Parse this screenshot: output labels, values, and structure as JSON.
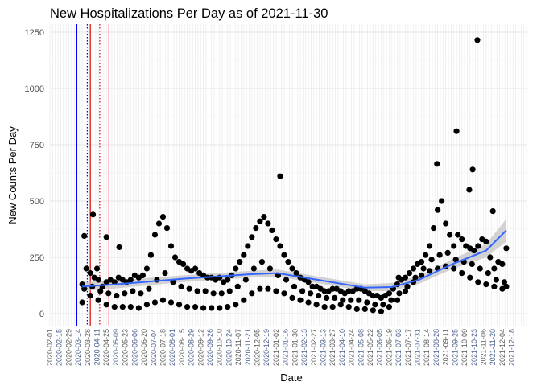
{
  "chart_data": {
    "type": "scatter",
    "title": "New Hospitalizations Per Day as of 2021-11-30",
    "xlabel": "Date",
    "ylabel": "New Counts Per Day",
    "ylim": [
      -50,
      1280
    ],
    "xlim_days": [
      -48,
      660
    ],
    "y_ticks": [
      0,
      250,
      500,
      750,
      1000,
      1250
    ],
    "y_tick_labels": [
      "0",
      "250",
      "500",
      "750",
      "1000",
      "1250"
    ],
    "x_tick_days_start": -48,
    "x_tick_days_step": 14,
    "x_tick_labels": [
      "2020-02-01",
      "2020-02-15",
      "2020-02-29",
      "2020-03-14",
      "2020-03-28",
      "2020-04-11",
      "2020-04-25",
      "2020-05-09",
      "2020-05-23",
      "2020-06-06",
      "2020-06-20",
      "2020-07-04",
      "2020-07-18",
      "2020-08-01",
      "2020-08-15",
      "2020-08-29",
      "2020-09-12",
      "2020-09-26",
      "2020-10-10",
      "2020-10-24",
      "2020-11-07",
      "2020-11-21",
      "2020-12-05",
      "2020-12-19",
      "2021-01-02",
      "2021-01-16",
      "2021-01-30",
      "2021-02-13",
      "2021-02-27",
      "2021-03-13",
      "2021-03-27",
      "2021-04-10",
      "2021-04-24",
      "2021-05-08",
      "2021-05-22",
      "2021-06-05",
      "2021-06-19",
      "2021-07-03",
      "2021-07-17",
      "2021-07-31",
      "2021-08-14",
      "2021-08-28",
      "2021-09-11",
      "2021-09-25",
      "2021-10-09",
      "2021-10-23",
      "2021-11-06",
      "2021-11-20",
      "2021-12-04",
      "2021-12-18"
    ],
    "grid": true,
    "point_color": "#000000",
    "points_high": [
      [
        0,
        130
      ],
      [
        6,
        200
      ],
      [
        12,
        180
      ],
      [
        18,
        160
      ],
      [
        24,
        150
      ],
      [
        30,
        120
      ],
      [
        36,
        140
      ],
      [
        42,
        150
      ],
      [
        48,
        140
      ],
      [
        54,
        160
      ],
      [
        60,
        150
      ],
      [
        66,
        140
      ],
      [
        72,
        150
      ],
      [
        78,
        170
      ],
      [
        84,
        160
      ],
      [
        90,
        170
      ],
      [
        96,
        200
      ],
      [
        102,
        260
      ],
      [
        108,
        350
      ],
      [
        114,
        400
      ],
      [
        120,
        430
      ],
      [
        126,
        380
      ],
      [
        132,
        300
      ],
      [
        138,
        250
      ],
      [
        144,
        230
      ],
      [
        150,
        220
      ],
      [
        156,
        200
      ],
      [
        162,
        190
      ],
      [
        168,
        200
      ],
      [
        174,
        180
      ],
      [
        180,
        170
      ],
      [
        186,
        160
      ],
      [
        192,
        160
      ],
      [
        198,
        150
      ],
      [
        204,
        160
      ],
      [
        210,
        140
      ],
      [
        216,
        150
      ],
      [
        222,
        170
      ],
      [
        228,
        200
      ],
      [
        234,
        230
      ],
      [
        240,
        260
      ],
      [
        246,
        300
      ],
      [
        252,
        340
      ],
      [
        258,
        380
      ],
      [
        264,
        410
      ],
      [
        270,
        430
      ],
      [
        276,
        400
      ],
      [
        282,
        370
      ],
      [
        288,
        330
      ],
      [
        294,
        300
      ],
      [
        300,
        260
      ],
      [
        306,
        230
      ],
      [
        312,
        200
      ],
      [
        318,
        180
      ],
      [
        324,
        160
      ],
      [
        330,
        150
      ],
      [
        336,
        140
      ],
      [
        342,
        120
      ],
      [
        348,
        120
      ],
      [
        354,
        110
      ],
      [
        360,
        100
      ],
      [
        366,
        100
      ],
      [
        372,
        110
      ],
      [
        378,
        110
      ],
      [
        384,
        100
      ],
      [
        390,
        90
      ],
      [
        396,
        100
      ],
      [
        402,
        100
      ],
      [
        408,
        110
      ],
      [
        414,
        110
      ],
      [
        420,
        100
      ],
      [
        426,
        90
      ],
      [
        432,
        80
      ],
      [
        438,
        80
      ],
      [
        444,
        70
      ],
      [
        450,
        80
      ],
      [
        456,
        90
      ],
      [
        462,
        110
      ],
      [
        468,
        130
      ],
      [
        474,
        150
      ],
      [
        480,
        160
      ],
      [
        486,
        180
      ],
      [
        492,
        200
      ],
      [
        498,
        220
      ],
      [
        504,
        230
      ],
      [
        510,
        260
      ],
      [
        516,
        300
      ],
      [
        522,
        380
      ],
      [
        528,
        460
      ],
      [
        534,
        500
      ],
      [
        540,
        400
      ],
      [
        546,
        350
      ],
      [
        552,
        300
      ],
      [
        558,
        350
      ],
      [
        564,
        330
      ],
      [
        570,
        300
      ],
      [
        576,
        290
      ],
      [
        582,
        280
      ],
      [
        588,
        300
      ],
      [
        594,
        330
      ],
      [
        600,
        320
      ],
      [
        606,
        250
      ],
      [
        612,
        200
      ],
      [
        618,
        230
      ],
      [
        624,
        220
      ],
      [
        630,
        290
      ]
    ],
    "points_mid": [
      [
        3,
        110
      ],
      [
        15,
        120
      ],
      [
        27,
        100
      ],
      [
        39,
        90
      ],
      [
        51,
        80
      ],
      [
        63,
        90
      ],
      [
        75,
        100
      ],
      [
        87,
        90
      ],
      [
        99,
        110
      ],
      [
        111,
        150
      ],
      [
        123,
        180
      ],
      [
        135,
        140
      ],
      [
        147,
        120
      ],
      [
        159,
        110
      ],
      [
        171,
        100
      ],
      [
        183,
        100
      ],
      [
        195,
        90
      ],
      [
        207,
        90
      ],
      [
        219,
        100
      ],
      [
        231,
        120
      ],
      [
        243,
        150
      ],
      [
        255,
        200
      ],
      [
        267,
        230
      ],
      [
        279,
        200
      ],
      [
        291,
        170
      ],
      [
        303,
        150
      ],
      [
        315,
        120
      ],
      [
        327,
        100
      ],
      [
        339,
        90
      ],
      [
        351,
        80
      ],
      [
        363,
        70
      ],
      [
        375,
        70
      ],
      [
        387,
        60
      ],
      [
        399,
        60
      ],
      [
        411,
        60
      ],
      [
        423,
        50
      ],
      [
        435,
        40
      ],
      [
        447,
        40
      ],
      [
        459,
        60
      ],
      [
        471,
        90
      ],
      [
        483,
        120
      ],
      [
        495,
        160
      ],
      [
        507,
        200
      ],
      [
        519,
        240
      ],
      [
        531,
        260
      ],
      [
        543,
        270
      ],
      [
        555,
        240
      ],
      [
        567,
        230
      ],
      [
        579,
        220
      ],
      [
        591,
        200
      ],
      [
        603,
        180
      ],
      [
        615,
        150
      ],
      [
        627,
        140
      ]
    ],
    "points_low": [
      [
        0,
        50
      ],
      [
        12,
        80
      ],
      [
        24,
        60
      ],
      [
        36,
        40
      ],
      [
        48,
        30
      ],
      [
        60,
        30
      ],
      [
        72,
        30
      ],
      [
        84,
        25
      ],
      [
        96,
        40
      ],
      [
        108,
        50
      ],
      [
        120,
        60
      ],
      [
        132,
        50
      ],
      [
        144,
        40
      ],
      [
        156,
        30
      ],
      [
        168,
        30
      ],
      [
        180,
        25
      ],
      [
        192,
        25
      ],
      [
        204,
        25
      ],
      [
        216,
        30
      ],
      [
        228,
        40
      ],
      [
        240,
        60
      ],
      [
        252,
        90
      ],
      [
        264,
        110
      ],
      [
        276,
        110
      ],
      [
        288,
        100
      ],
      [
        300,
        90
      ],
      [
        312,
        70
      ],
      [
        324,
        60
      ],
      [
        336,
        50
      ],
      [
        348,
        40
      ],
      [
        360,
        30
      ],
      [
        372,
        30
      ],
      [
        384,
        40
      ],
      [
        396,
        30
      ],
      [
        408,
        20
      ],
      [
        420,
        20
      ],
      [
        432,
        15
      ],
      [
        444,
        10
      ],
      [
        456,
        30
      ],
      [
        468,
        60
      ],
      [
        480,
        100
      ],
      [
        492,
        140
      ],
      [
        504,
        170
      ],
      [
        516,
        190
      ],
      [
        528,
        200
      ],
      [
        540,
        210
      ],
      [
        552,
        200
      ],
      [
        564,
        180
      ],
      [
        576,
        160
      ],
      [
        588,
        140
      ],
      [
        600,
        130
      ],
      [
        612,
        120
      ],
      [
        624,
        110
      ],
      [
        630,
        120
      ]
    ],
    "points_outliers": [
      [
        3,
        345
      ],
      [
        16,
        440
      ],
      [
        22,
        200
      ],
      [
        36,
        340
      ],
      [
        55,
        295
      ],
      [
        294,
        610
      ],
      [
        527,
        665
      ],
      [
        556,
        810
      ],
      [
        575,
        550
      ],
      [
        580,
        640
      ],
      [
        587,
        1215
      ],
      [
        610,
        455
      ],
      [
        470,
        160
      ]
    ],
    "smooth": {
      "color": "#3366ff",
      "ci_color": "#bdbdbd",
      "values": [
        [
          0,
          120,
          100,
          140
        ],
        [
          50,
          130,
          112,
          148
        ],
        [
          150,
          155,
          140,
          170
        ],
        [
          250,
          175,
          160,
          190
        ],
        [
          290,
          180,
          164,
          196
        ],
        [
          350,
          150,
          135,
          165
        ],
        [
          420,
          115,
          100,
          130
        ],
        [
          460,
          118,
          100,
          136
        ],
        [
          500,
          150,
          132,
          168
        ],
        [
          550,
          220,
          198,
          242
        ],
        [
          600,
          280,
          250,
          310
        ],
        [
          630,
          370,
          320,
          420
        ]
      ]
    },
    "vlines": [
      {
        "day": -8,
        "color": "#0000ff",
        "style": "solid"
      },
      {
        "day": 7.5,
        "color": "#0000ff",
        "style": "dotted"
      },
      {
        "day": 12,
        "color": "#e00000",
        "style": "solid"
      },
      {
        "day": 26,
        "color": "#e00000",
        "style": "dotted"
      },
      {
        "day": 39,
        "color": "#ffb6c1",
        "style": "solid"
      },
      {
        "day": 53,
        "color": "#ffb6c1",
        "style": "dotted"
      }
    ]
  }
}
